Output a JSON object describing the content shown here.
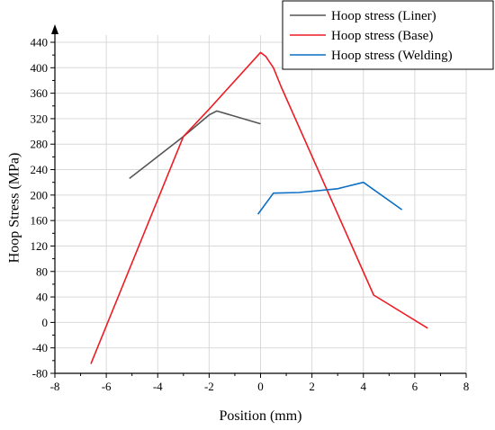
{
  "chart_data": {
    "type": "line",
    "title": "",
    "xlabel": "Position (mm)",
    "ylabel": "Hoop Stress (MPa)",
    "xlim": [
      -8,
      8
    ],
    "ylim": [
      -80,
      440
    ],
    "xticks": [
      -8,
      -6,
      -4,
      -2,
      0,
      2,
      4,
      6,
      8
    ],
    "yticks": [
      -80,
      -40,
      0,
      40,
      80,
      120,
      160,
      200,
      240,
      280,
      320,
      360,
      400,
      440
    ],
    "grid": true,
    "legend_position": "top-right",
    "series": [
      {
        "name": "Hoop stress (Liner)",
        "color": "#555555",
        "points": [
          [
            -5.1,
            226
          ],
          [
            -4.4,
            248
          ],
          [
            -3.0,
            292
          ],
          [
            -2.0,
            326
          ],
          [
            -1.7,
            332
          ],
          [
            0.0,
            312
          ]
        ]
      },
      {
        "name": "Hoop stress (Base)",
        "color": "#ee1c25",
        "points": [
          [
            -6.6,
            -65
          ],
          [
            -3.0,
            292
          ],
          [
            -2.0,
            335
          ],
          [
            0.0,
            424
          ],
          [
            0.2,
            418
          ],
          [
            0.5,
            400
          ],
          [
            0.8,
            370
          ],
          [
            4.4,
            43
          ],
          [
            6.5,
            -9
          ]
        ]
      },
      {
        "name": "Hoop stress (Welding)",
        "color": "#0b6fc4",
        "points": [
          [
            -0.1,
            170
          ],
          [
            0.5,
            203
          ],
          [
            1.5,
            204
          ],
          [
            3.0,
            210
          ],
          [
            4.0,
            220
          ],
          [
            5.5,
            177
          ]
        ]
      }
    ]
  }
}
